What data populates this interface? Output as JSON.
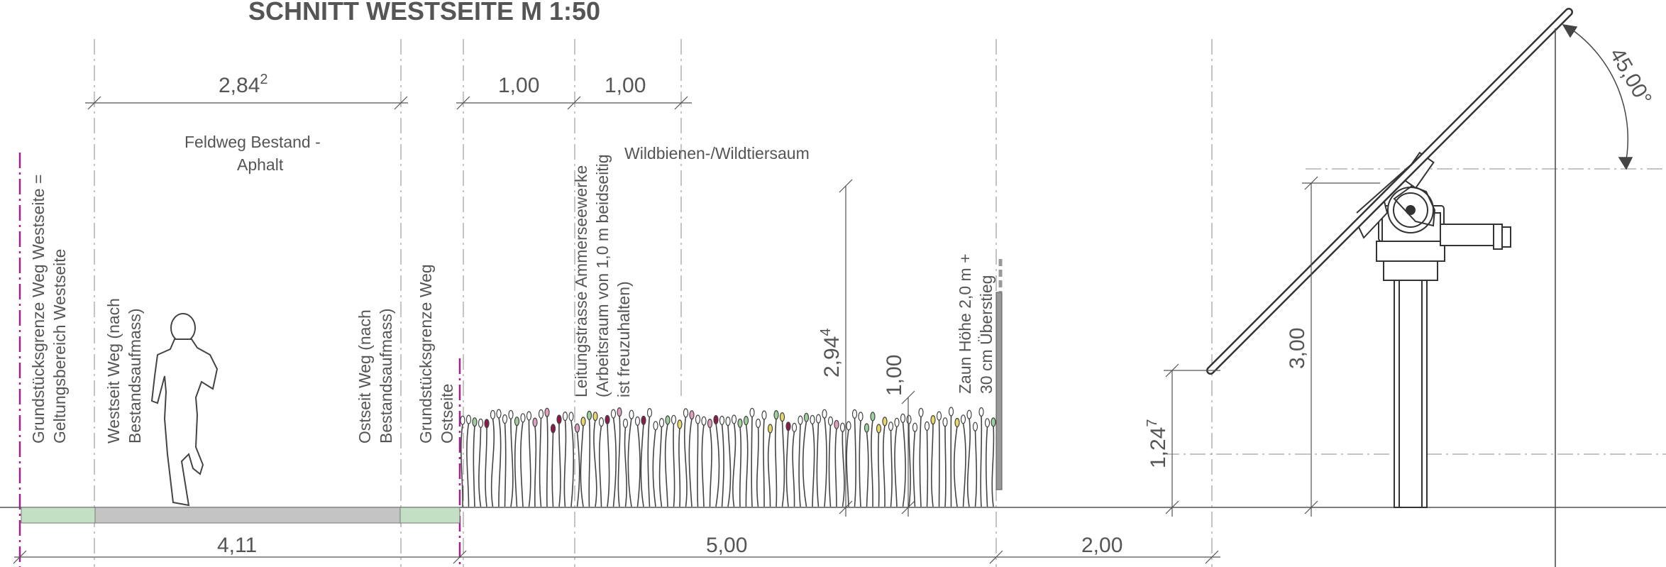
{
  "title": "SCHNITT WESTSEITE  M 1:50",
  "dimensions": {
    "walkway_width": "2,84",
    "walkway_width_sup": "2",
    "strip_1": "1,00",
    "strip_2": "1,00",
    "plot_west": "4,11",
    "meadow_width": "5,00",
    "distance_pv": "2,00",
    "plant_height": "2,94",
    "plant_height_sup": "4",
    "plant_height_2": "1,00",
    "module_height": "3,00",
    "lower_edge": "1,24",
    "lower_edge_sup": "7",
    "tilt_angle": "45,00°"
  },
  "labels": {
    "feldweg_1": "Feldweg Bestand -",
    "feldweg_2": "Aphalt",
    "wildbienen": "Wildbienen-/Wildtiersaum",
    "grenze_west_1": "Grundstücksgrenze Weg Westseite =",
    "grenze_west_2": "Geltungsbereich Westseite",
    "westseit_1": "Westseit Weg (nach",
    "westseit_2": "Bestandsaufmass)",
    "ostseit_1": "Ostseit Weg (nach",
    "ostseit_2": "Bestandsaufmass)",
    "grenze_ost_1": "Grundstücksgrenze Weg",
    "grenze_ost_2": "Ostseite",
    "leitung_1": "Leitungstrasse Ammerseewerke",
    "leitung_2": "(Arbeitsraum von 1,0 m beidseitig",
    "leitung_3": "ist freuzuhalten)",
    "zaun_1": "Zaun Höhe 2,0 m +",
    "zaun_2": "30 cm Überstieg"
  },
  "colors": {
    "line": "#555555",
    "property_line": "#a0208c",
    "green_strip": "#c4e0c4",
    "asphalt": "#c4c4c4"
  }
}
